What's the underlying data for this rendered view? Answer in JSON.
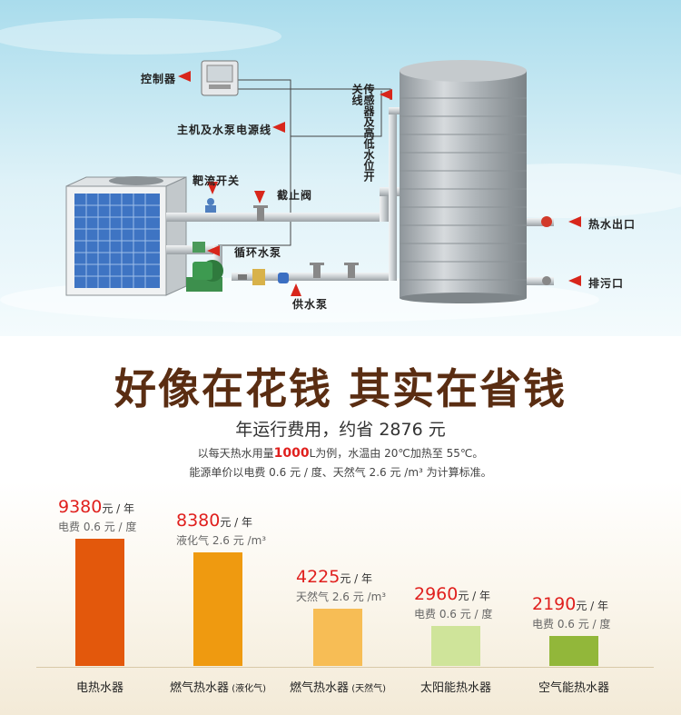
{
  "diagram": {
    "labels": {
      "controller": "控制器",
      "power_line": "主机及水泵电源线",
      "target_switch": "靶流开关",
      "stop_valve": "截止阀",
      "circulation_pump": "循环水泵",
      "supply_pump": "供水泵",
      "sensor_level_switch": "传感器及高低水位开关线",
      "hot_water_outlet": "热水出口",
      "drain_outlet": "排污口"
    }
  },
  "slogan": "好像在花钱 其实在省钱",
  "subtitle": "年运行费用，约省 2876 元",
  "note": {
    "line1_pre": "以每天热水用量",
    "line1_highlight": "1000",
    "line1_post": "L为例，水温由 20℃加热至 55℃。",
    "line2": "能源单价以电费 0.6 元 / 度、天然气 2.6 元 /m³ 为计算标准。"
  },
  "colors": {
    "electric": "#e3580c",
    "gas_lpg": "#ef9a10",
    "gas_natural": "#f7bd55",
    "solar": "#cfe49a",
    "air": "#92b73a",
    "value_red": "#e0201e",
    "slogan_brown": "#5a2d12"
  },
  "chart_data": {
    "type": "bar",
    "categories": [
      "电热水器",
      "燃气热水器",
      "燃气热水器",
      "太阳能热水器",
      "空气能热水器"
    ],
    "category_notes": [
      "",
      "(液化气)",
      "(天然气)",
      "",
      ""
    ],
    "values": [
      9380,
      8380,
      4225,
      2960,
      2190
    ],
    "value_unit": "元 / 年",
    "sublabels": [
      "电费 0.6 元 / 度",
      "液化气 2.6 元 /m³",
      "天然气 2.6 元 /m³",
      "电费 0.6 元 / 度",
      "电费 0.6 元 / 度"
    ],
    "ylim": [
      0,
      9380
    ],
    "grid": false
  }
}
